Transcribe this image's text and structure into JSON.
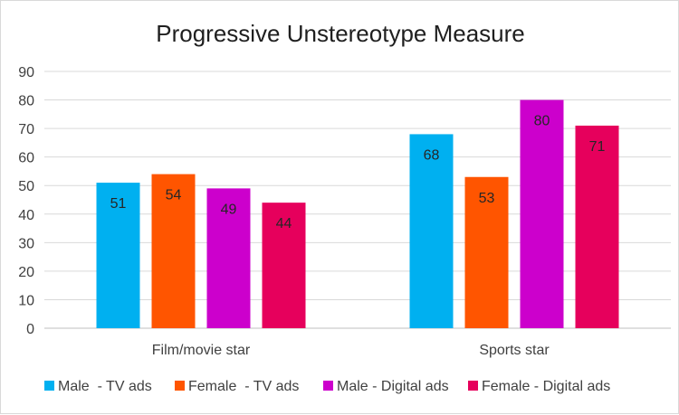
{
  "chart_data": {
    "type": "bar",
    "title": "Progressive Unstereotype Measure",
    "xlabel": "",
    "ylabel": "",
    "categories": [
      "Film/movie star",
      "Sports star"
    ],
    "series": [
      {
        "name": "Male  - TV ads",
        "values": [
          51,
          68
        ],
        "color": "#00b0f0"
      },
      {
        "name": "Female  - TV ads",
        "values": [
          54,
          53
        ],
        "color": "#ff5500"
      },
      {
        "name": "Male - Digital ads",
        "values": [
          49,
          80
        ],
        "color": "#cc00cc"
      },
      {
        "name": "Female - Digital ads",
        "values": [
          44,
          71
        ],
        "color": "#e6005c"
      }
    ],
    "ylim": [
      0,
      90
    ],
    "yticks": [
      0,
      10,
      20,
      30,
      40,
      50,
      60,
      70,
      80,
      90
    ],
    "grid": true,
    "legend_position": "bottom",
    "data_labels": true
  }
}
